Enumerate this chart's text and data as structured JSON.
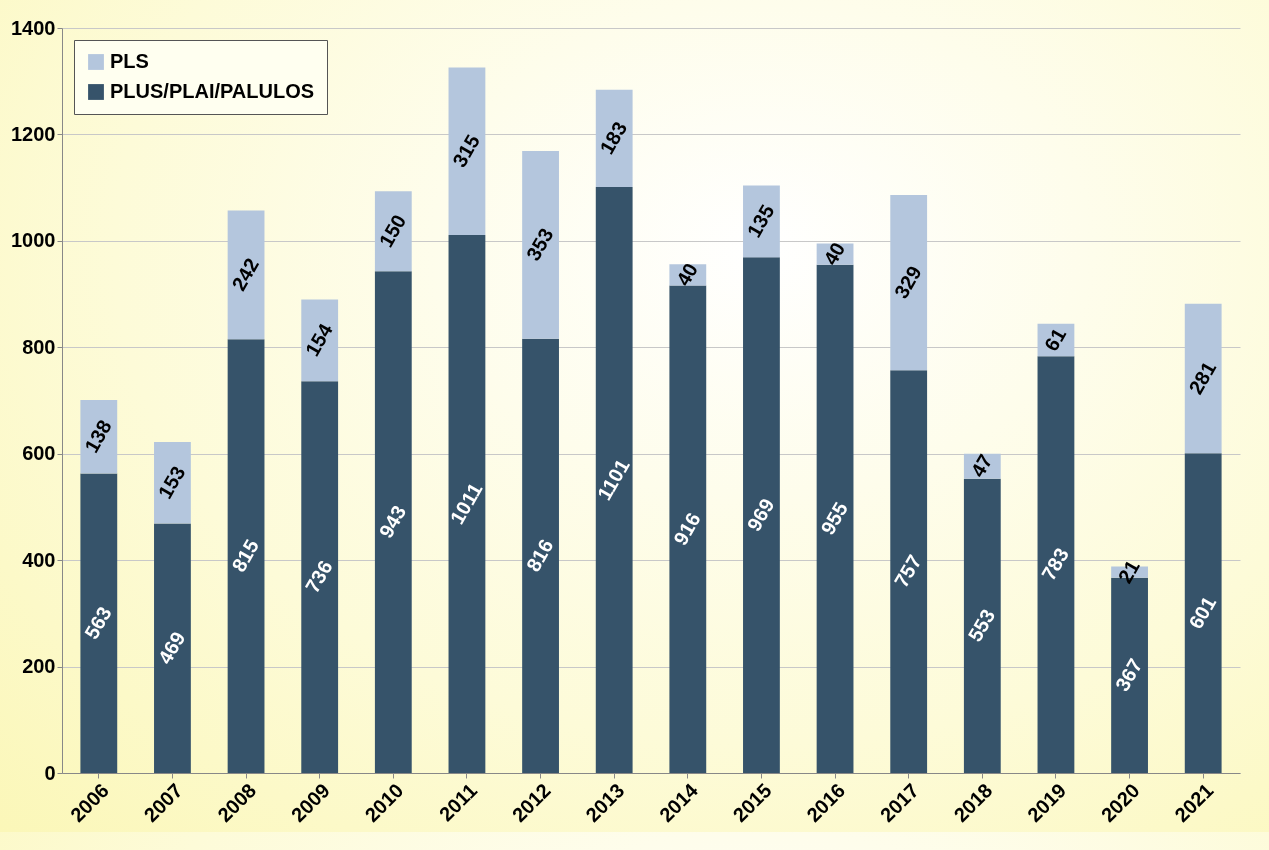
{
  "chart_data": {
    "type": "bar",
    "stacked": true,
    "categories": [
      "2006",
      "2007",
      "2008",
      "2009",
      "2010",
      "2011",
      "2012",
      "2013",
      "2014",
      "2015",
      "2016",
      "2017",
      "2018",
      "2019",
      "2020",
      "2021"
    ],
    "series": [
      {
        "name": "PLUS/PLAI/PALULOS",
        "color": "#36536a",
        "values": [
          563,
          469,
          815,
          736,
          943,
          1011,
          816,
          1101,
          916,
          969,
          955,
          757,
          553,
          783,
          367,
          601
        ]
      },
      {
        "name": "PLS",
        "color": "#b4c6dd",
        "values": [
          138,
          153,
          242,
          154,
          150,
          315,
          353,
          183,
          40,
          135,
          40,
          329,
          47,
          61,
          21,
          281
        ]
      }
    ],
    "ylim": [
      0,
      1400
    ],
    "yticks": [
      0,
      200,
      400,
      600,
      800,
      1000,
      1200,
      1400
    ],
    "grid": "y",
    "legend": "top left",
    "data_labels": true
  }
}
